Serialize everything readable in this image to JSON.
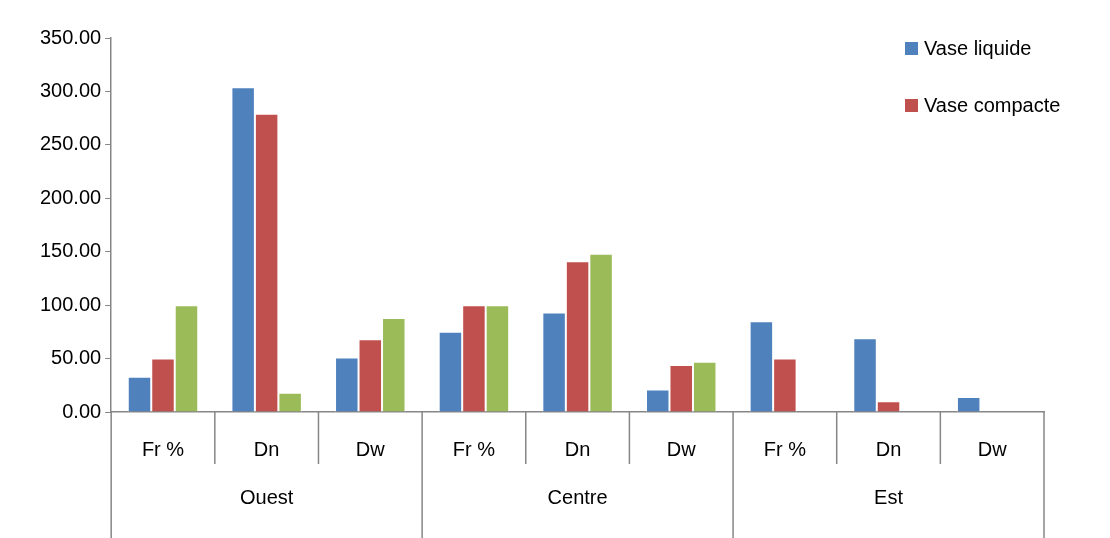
{
  "chart_data": {
    "type": "bar",
    "categories": [
      "Fr %",
      "Dn",
      "Dw",
      "Fr %",
      "Dn",
      "Dw",
      "Fr %",
      "Dn",
      "Dw"
    ],
    "series": [
      {
        "name": "Vase liquide",
        "color": "#4f81bd",
        "values": [
          33,
          304,
          51,
          75,
          93,
          21,
          85,
          69,
          14
        ]
      },
      {
        "name": "Vase compacte",
        "color": "#c0504d",
        "values": [
          50,
          279,
          68,
          100,
          141,
          44,
          50,
          10,
          0
        ]
      },
      {
        "color": "#9bbb59",
        "values": [
          100,
          18,
          88,
          100,
          148,
          47,
          0,
          0,
          0
        ]
      }
    ],
    "annotations": [
      "Ouest",
      "Centre",
      "Est"
    ],
    "ylim": [
      0,
      350
    ],
    "yticks": [
      {
        "value": 0,
        "label": "0.00"
      },
      {
        "value": 50,
        "label": "50.00"
      },
      {
        "value": 100,
        "label": "100.00"
      },
      {
        "value": 150,
        "label": "150.00"
      },
      {
        "value": 200,
        "label": "200.00"
      },
      {
        "value": 250,
        "label": "250.00"
      },
      {
        "value": 300,
        "label": "300.00"
      },
      {
        "value": 350,
        "label": "350.00"
      }
    ],
    "grid": false,
    "legend": "top right"
  }
}
